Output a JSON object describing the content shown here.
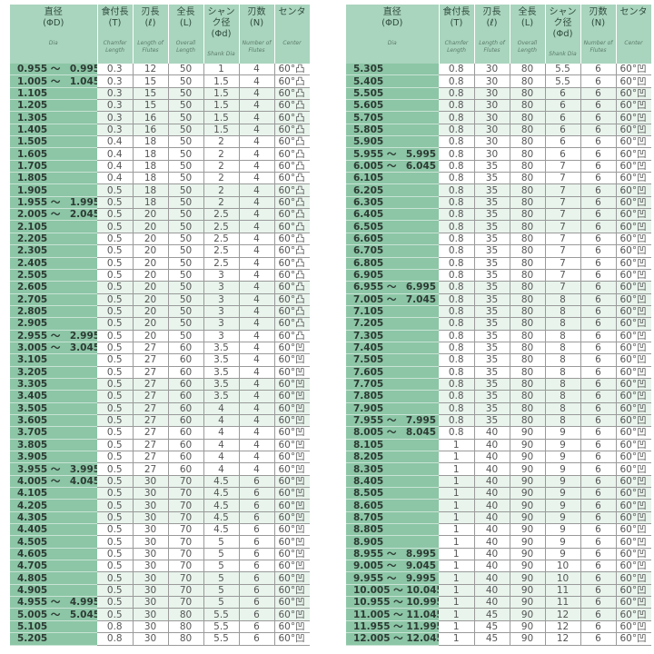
{
  "headers": [
    {
      "jp1": "直径",
      "jp2": "(ΦD)",
      "en": "Dia"
    },
    {
      "jp1": "食付長",
      "jp2": "(T)",
      "en": "Chamfer Length"
    },
    {
      "jp1": "刃長",
      "jp2": "(ℓ)",
      "en": "Length of Flutes"
    },
    {
      "jp1": "全長",
      "jp2": "(L)",
      "en": "Overall Length"
    },
    {
      "jp1": "シャンク径",
      "jp2": "(Φd)",
      "en": "Shank Dia"
    },
    {
      "jp1": "刃数",
      "jp2": "(N)",
      "en": "Number of Flutes"
    },
    {
      "jp1": "センタ",
      "jp2": "",
      "en": "Center"
    }
  ],
  "left_rows": [
    [
      "0.955 ～　0.995",
      "0.3",
      "12",
      "50",
      "1",
      "4",
      "60°凸"
    ],
    [
      "1.005 ～　1.045",
      "0.3",
      "15",
      "50",
      "1.5",
      "4",
      "60°凸"
    ],
    [
      "1.105",
      "0.3",
      "15",
      "50",
      "1.5",
      "4",
      "60°凸"
    ],
    [
      "1.205",
      "0.3",
      "15",
      "50",
      "1.5",
      "4",
      "60°凸"
    ],
    [
      "1.305",
      "0.3",
      "16",
      "50",
      "1.5",
      "4",
      "60°凸"
    ],
    [
      "1.405",
      "0.3",
      "16",
      "50",
      "1.5",
      "4",
      "60°凸"
    ],
    [
      "1.505",
      "0.4",
      "18",
      "50",
      "2",
      "4",
      "60°凸"
    ],
    [
      "1.605",
      "0.4",
      "18",
      "50",
      "2",
      "4",
      "60°凸"
    ],
    [
      "1.705",
      "0.4",
      "18",
      "50",
      "2",
      "4",
      "60°凸"
    ],
    [
      "1.805",
      "0.4",
      "18",
      "50",
      "2",
      "4",
      "60°凸"
    ],
    [
      "1.905",
      "0.5",
      "18",
      "50",
      "2",
      "4",
      "60°凸"
    ],
    [
      "1.955 ～　1.995",
      "0.5",
      "18",
      "50",
      "2",
      "4",
      "60°凸"
    ],
    [
      "2.005 ～　2.045",
      "0.5",
      "20",
      "50",
      "2.5",
      "4",
      "60°凸"
    ],
    [
      "2.105",
      "0.5",
      "20",
      "50",
      "2.5",
      "4",
      "60°凸"
    ],
    [
      "2.205",
      "0.5",
      "20",
      "50",
      "2.5",
      "4",
      "60°凸"
    ],
    [
      "2.305",
      "0.5",
      "20",
      "50",
      "2.5",
      "4",
      "60°凸"
    ],
    [
      "2.405",
      "0.5",
      "20",
      "50",
      "2.5",
      "4",
      "60°凸"
    ],
    [
      "2.505",
      "0.5",
      "20",
      "50",
      "3",
      "4",
      "60°凸"
    ],
    [
      "2.605",
      "0.5",
      "20",
      "50",
      "3",
      "4",
      "60°凸"
    ],
    [
      "2.705",
      "0.5",
      "20",
      "50",
      "3",
      "4",
      "60°凸"
    ],
    [
      "2.805",
      "0.5",
      "20",
      "50",
      "3",
      "4",
      "60°凸"
    ],
    [
      "2.905",
      "0.5",
      "20",
      "50",
      "3",
      "4",
      "60°凸"
    ],
    [
      "2.955 ～　2.995",
      "0.5",
      "20",
      "50",
      "3",
      "4",
      "60°凸"
    ],
    [
      "3.005 ～　3.045",
      "0.5",
      "27",
      "60",
      "3.5",
      "4",
      "60°凹"
    ],
    [
      "3.105",
      "0.5",
      "27",
      "60",
      "3.5",
      "4",
      "60°凹"
    ],
    [
      "3.205",
      "0.5",
      "27",
      "60",
      "3.5",
      "4",
      "60°凹"
    ],
    [
      "3.305",
      "0.5",
      "27",
      "60",
      "3.5",
      "4",
      "60°凹"
    ],
    [
      "3.405",
      "0.5",
      "27",
      "60",
      "3.5",
      "4",
      "60°凹"
    ],
    [
      "3.505",
      "0.5",
      "27",
      "60",
      "4",
      "4",
      "60°凹"
    ],
    [
      "3.605",
      "0.5",
      "27",
      "60",
      "4",
      "4",
      "60°凹"
    ],
    [
      "3.705",
      "0.5",
      "27",
      "60",
      "4",
      "4",
      "60°凹"
    ],
    [
      "3.805",
      "0.5",
      "27",
      "60",
      "4",
      "4",
      "60°凹"
    ],
    [
      "3.905",
      "0.5",
      "27",
      "60",
      "4",
      "4",
      "60°凹"
    ],
    [
      "3.955 ～　3.995",
      "0.5",
      "27",
      "60",
      "4",
      "4",
      "60°凹"
    ],
    [
      "4.005 ～　4.045",
      "0.5",
      "30",
      "70",
      "4.5",
      "6",
      "60°凹"
    ],
    [
      "4.105",
      "0.5",
      "30",
      "70",
      "4.5",
      "6",
      "60°凹"
    ],
    [
      "4.205",
      "0.5",
      "30",
      "70",
      "4.5",
      "6",
      "60°凹"
    ],
    [
      "4.305",
      "0.5",
      "30",
      "70",
      "4.5",
      "6",
      "60°凹"
    ],
    [
      "4.405",
      "0.5",
      "30",
      "70",
      "4.5",
      "6",
      "60°凹"
    ],
    [
      "4.505",
      "0.5",
      "30",
      "70",
      "5",
      "6",
      "60°凹"
    ],
    [
      "4.605",
      "0.5",
      "30",
      "70",
      "5",
      "6",
      "60°凹"
    ],
    [
      "4.705",
      "0.5",
      "30",
      "70",
      "5",
      "6",
      "60°凹"
    ],
    [
      "4.805",
      "0.5",
      "30",
      "70",
      "5",
      "6",
      "60°凹"
    ],
    [
      "4.905",
      "0.5",
      "30",
      "70",
      "5",
      "6",
      "60°凹"
    ],
    [
      "4.955 ～　4.995",
      "0.5",
      "30",
      "70",
      "5",
      "6",
      "60°凹"
    ],
    [
      "5.005 ～　5.045",
      "0.5",
      "30",
      "80",
      "5.5",
      "6",
      "60°凹"
    ],
    [
      "5.105",
      "0.8",
      "30",
      "80",
      "5.5",
      "6",
      "60°凹"
    ],
    [
      "5.205",
      "0.8",
      "30",
      "80",
      "5.5",
      "6",
      "60°凹"
    ]
  ],
  "right_rows": [
    [
      "5.305",
      "0.8",
      "30",
      "80",
      "5.5",
      "6",
      "60°凹"
    ],
    [
      "5.405",
      "0.8",
      "30",
      "80",
      "5.5",
      "6",
      "60°凹"
    ],
    [
      "5.505",
      "0.8",
      "30",
      "80",
      "6",
      "6",
      "60°凹"
    ],
    [
      "5.605",
      "0.8",
      "30",
      "80",
      "6",
      "6",
      "60°凹"
    ],
    [
      "5.705",
      "0.8",
      "30",
      "80",
      "6",
      "6",
      "60°凹"
    ],
    [
      "5.805",
      "0.8",
      "30",
      "80",
      "6",
      "6",
      "60°凹"
    ],
    [
      "5.905",
      "0.8",
      "30",
      "80",
      "6",
      "6",
      "60°凹"
    ],
    [
      "5.955 ～　5.995",
      "0.8",
      "30",
      "80",
      "6",
      "6",
      "60°凹"
    ],
    [
      "6.005 ～　6.045",
      "0.8",
      "35",
      "80",
      "7",
      "6",
      "60°凹"
    ],
    [
      "6.105",
      "0.8",
      "35",
      "80",
      "7",
      "6",
      "60°凹"
    ],
    [
      "6.205",
      "0.8",
      "35",
      "80",
      "7",
      "6",
      "60°凹"
    ],
    [
      "6.305",
      "0.8",
      "35",
      "80",
      "7",
      "6",
      "60°凹"
    ],
    [
      "6.405",
      "0.8",
      "35",
      "80",
      "7",
      "6",
      "60°凹"
    ],
    [
      "6.505",
      "0.8",
      "35",
      "80",
      "7",
      "6",
      "60°凹"
    ],
    [
      "6.605",
      "0.8",
      "35",
      "80",
      "7",
      "6",
      "60°凹"
    ],
    [
      "6.705",
      "0.8",
      "35",
      "80",
      "7",
      "6",
      "60°凹"
    ],
    [
      "6.805",
      "0.8",
      "35",
      "80",
      "7",
      "6",
      "60°凹"
    ],
    [
      "6.905",
      "0.8",
      "35",
      "80",
      "7",
      "6",
      "60°凹"
    ],
    [
      "6.955 ～　6.995",
      "0.8",
      "35",
      "80",
      "7",
      "6",
      "60°凹"
    ],
    [
      "7.005 ～　7.045",
      "0.8",
      "35",
      "80",
      "8",
      "6",
      "60°凹"
    ],
    [
      "7.105",
      "0.8",
      "35",
      "80",
      "8",
      "6",
      "60°凹"
    ],
    [
      "7.205",
      "0.8",
      "35",
      "80",
      "8",
      "6",
      "60°凹"
    ],
    [
      "7.305",
      "0.8",
      "35",
      "80",
      "8",
      "6",
      "60°凹"
    ],
    [
      "7.405",
      "0.8",
      "35",
      "80",
      "8",
      "6",
      "60°凹"
    ],
    [
      "7.505",
      "0.8",
      "35",
      "80",
      "8",
      "6",
      "60°凹"
    ],
    [
      "7.605",
      "0.8",
      "35",
      "80",
      "8",
      "6",
      "60°凹"
    ],
    [
      "7.705",
      "0.8",
      "35",
      "80",
      "8",
      "6",
      "60°凹"
    ],
    [
      "7.805",
      "0.8",
      "35",
      "80",
      "8",
      "6",
      "60°凹"
    ],
    [
      "7.905",
      "0.8",
      "35",
      "80",
      "8",
      "6",
      "60°凹"
    ],
    [
      "7.955 ～　7.995",
      "0.8",
      "35",
      "80",
      "8",
      "6",
      "60°凹"
    ],
    [
      "8.005 ～　8.045",
      "0.8",
      "40",
      "90",
      "9",
      "6",
      "60°凹"
    ],
    [
      "8.105",
      "1",
      "40",
      "90",
      "9",
      "6",
      "60°凹"
    ],
    [
      "8.205",
      "1",
      "40",
      "90",
      "9",
      "6",
      "60°凹"
    ],
    [
      "8.305",
      "1",
      "40",
      "90",
      "9",
      "6",
      "60°凹"
    ],
    [
      "8.405",
      "1",
      "40",
      "90",
      "9",
      "6",
      "60°凹"
    ],
    [
      "8.505",
      "1",
      "40",
      "90",
      "9",
      "6",
      "60°凹"
    ],
    [
      "8.605",
      "1",
      "40",
      "90",
      "9",
      "6",
      "60°凹"
    ],
    [
      "8.705",
      "1",
      "40",
      "90",
      "9",
      "6",
      "60°凹"
    ],
    [
      "8.805",
      "1",
      "40",
      "90",
      "9",
      "6",
      "60°凹"
    ],
    [
      "8.905",
      "1",
      "40",
      "90",
      "9",
      "6",
      "60°凹"
    ],
    [
      "8.955 ～　8.995",
      "1",
      "40",
      "90",
      "9",
      "6",
      "60°凹"
    ],
    [
      "9.005 ～　9.045",
      "1",
      "40",
      "90",
      "10",
      "6",
      "60°凹"
    ],
    [
      "9.955 ～　9.995",
      "1",
      "40",
      "90",
      "10",
      "6",
      "60°凹"
    ],
    [
      "10.005 ～ 10.045",
      "1",
      "40",
      "90",
      "11",
      "6",
      "60°凹"
    ],
    [
      "10.955 ～ 10.995",
      "1",
      "40",
      "90",
      "11",
      "6",
      "60°凹"
    ],
    [
      "11.005 ～ 11.045",
      "1",
      "45",
      "90",
      "12",
      "6",
      "60°凹"
    ],
    [
      "11.955 ～ 11.995",
      "1",
      "45",
      "90",
      "12",
      "6",
      "60°凹"
    ],
    [
      "12.005 ～ 12.045",
      "1",
      "45",
      "90",
      "12",
      "6",
      "60°凹"
    ]
  ]
}
